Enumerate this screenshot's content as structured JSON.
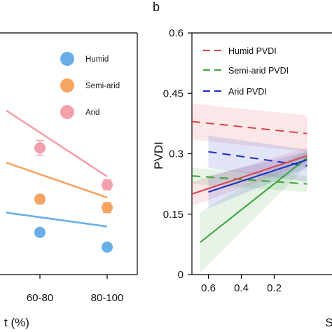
{
  "panel_b_letter": "b",
  "chart_data": [
    {
      "type": "scatter",
      "panel": "a",
      "categories": [
        "60-80",
        "80-100"
      ],
      "xlabel": "t (%)",
      "ylabel": "",
      "grid": false,
      "legend_position": "top-right",
      "series": [
        {
          "name": "Humid",
          "color": "#6aaee8",
          "points": [
            {
              "x": "60-80",
              "y": 0.47,
              "err": 0.08
            },
            {
              "x": "80-100",
              "y": 0.12,
              "err": 0.06
            }
          ]
        },
        {
          "name": "Semi-arid",
          "color": "#f5a462",
          "points": [
            {
              "x": "60-80",
              "y": 1.26,
              "err": 0.1
            },
            {
              "x": "80-100",
              "y": 1.06,
              "err": 0.12
            }
          ]
        },
        {
          "name": "Arid",
          "color": "#f2a0aa",
          "points": [
            {
              "x": "60-80",
              "y": 2.48,
              "err": 0.18
            },
            {
              "x": "80-100",
              "y": 1.6,
              "err": 0.12
            }
          ]
        }
      ],
      "fit_lines": [
        {
          "series": "Humid",
          "x0": -0.5,
          "y0": 0.94,
          "x1": 1.0,
          "y1": 0.61
        },
        {
          "series": "Semi-arid",
          "x0": -0.5,
          "y0": 2.13,
          "x1": 1.0,
          "y1": 1.3
        },
        {
          "series": "Arid",
          "x0": -0.5,
          "y0": 3.37,
          "x1": 1.0,
          "y1": 1.8
        }
      ]
    },
    {
      "type": "line",
      "panel": "b",
      "xlabel": "S",
      "ylabel": "PVDI",
      "xlim": [
        0.7,
        0.0
      ],
      "ylim": [
        0,
        0.6
      ],
      "x_ticks": [
        "0.6",
        "0.4",
        "0.2"
      ],
      "y_ticks": [
        "0",
        "0.15",
        "0.3",
        "0.45",
        "0.6"
      ],
      "grid": false,
      "legend_position": "top-left",
      "series": [
        {
          "name": "Humid PVDI",
          "color": "#d9434d",
          "dash": true,
          "x": [
            0.7,
            0.0
          ],
          "y": [
            0.38,
            0.35
          ],
          "band": [
            0.045,
            0.045
          ]
        },
        {
          "name": "Semi-arid PVDI",
          "color": "#3aa23a",
          "dash": true,
          "x": [
            0.7,
            0.0
          ],
          "y": [
            0.245,
            0.225
          ],
          "band": [
            0.02,
            0.02
          ]
        },
        {
          "name": "Arid PVDI",
          "color": "#1c2fc0",
          "dash": true,
          "x": [
            0.6,
            0.0
          ],
          "y": [
            0.305,
            0.27
          ],
          "band": [
            0.04,
            0.04
          ]
        },
        {
          "name": "",
          "color": "#d9434d",
          "dash": false,
          "x": [
            0.7,
            0.0
          ],
          "y": [
            0.2,
            0.295
          ],
          "band": [
            0.03,
            0.02
          ]
        },
        {
          "name": "",
          "color": "#3aa23a",
          "dash": false,
          "x": [
            0.65,
            0.0
          ],
          "y": [
            0.08,
            0.29
          ],
          "band": [
            0.075,
            0.02
          ]
        },
        {
          "name": "",
          "color": "#1c2fc0",
          "dash": false,
          "x": [
            0.6,
            0.0
          ],
          "y": [
            0.205,
            0.285
          ],
          "band": [
            0.04,
            0.02
          ]
        }
      ]
    }
  ]
}
